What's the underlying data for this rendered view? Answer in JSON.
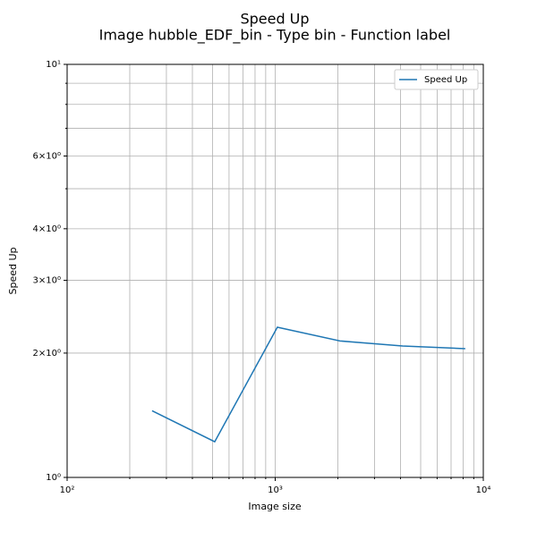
{
  "chart_data": {
    "type": "line",
    "title": "Speed Up",
    "subtitle": "Image hubble_EDF_bin - Type bin - Function label",
    "xlabel": "Image size",
    "ylabel": "Speed Up",
    "xscale": "log",
    "yscale": "log",
    "grid": true,
    "legend_loc": "upper right",
    "x": [
      256,
      512,
      1024,
      2048,
      4096,
      8192
    ],
    "series": [
      {
        "name": "Speed Up",
        "color": "#1f77b4",
        "values": [
          1.45,
          1.22,
          2.31,
          2.14,
          2.08,
          2.05
        ]
      }
    ],
    "xlim": [
      100,
      10000
    ],
    "xticks": [
      {
        "value": 100,
        "label": "10²"
      },
      {
        "value": 1000,
        "label": "10³"
      },
      {
        "value": 10000,
        "label": "10⁴"
      }
    ],
    "xminorticks": [
      200,
      300,
      400,
      500,
      600,
      700,
      800,
      900,
      2000,
      3000,
      4000,
      5000,
      6000,
      7000,
      8000,
      9000
    ],
    "ylim": [
      1,
      10
    ],
    "yticks": [
      {
        "value": 1,
        "label": "10⁰"
      },
      {
        "value": 2,
        "label": "2×10⁰"
      },
      {
        "value": 3,
        "label": "3×10⁰"
      },
      {
        "value": 4,
        "label": "4×10⁰"
      },
      {
        "value": 6,
        "label": "6×10⁰"
      },
      {
        "value": 10,
        "label": "10¹"
      }
    ],
    "yminorticks": [
      5,
      7,
      8,
      9
    ]
  }
}
